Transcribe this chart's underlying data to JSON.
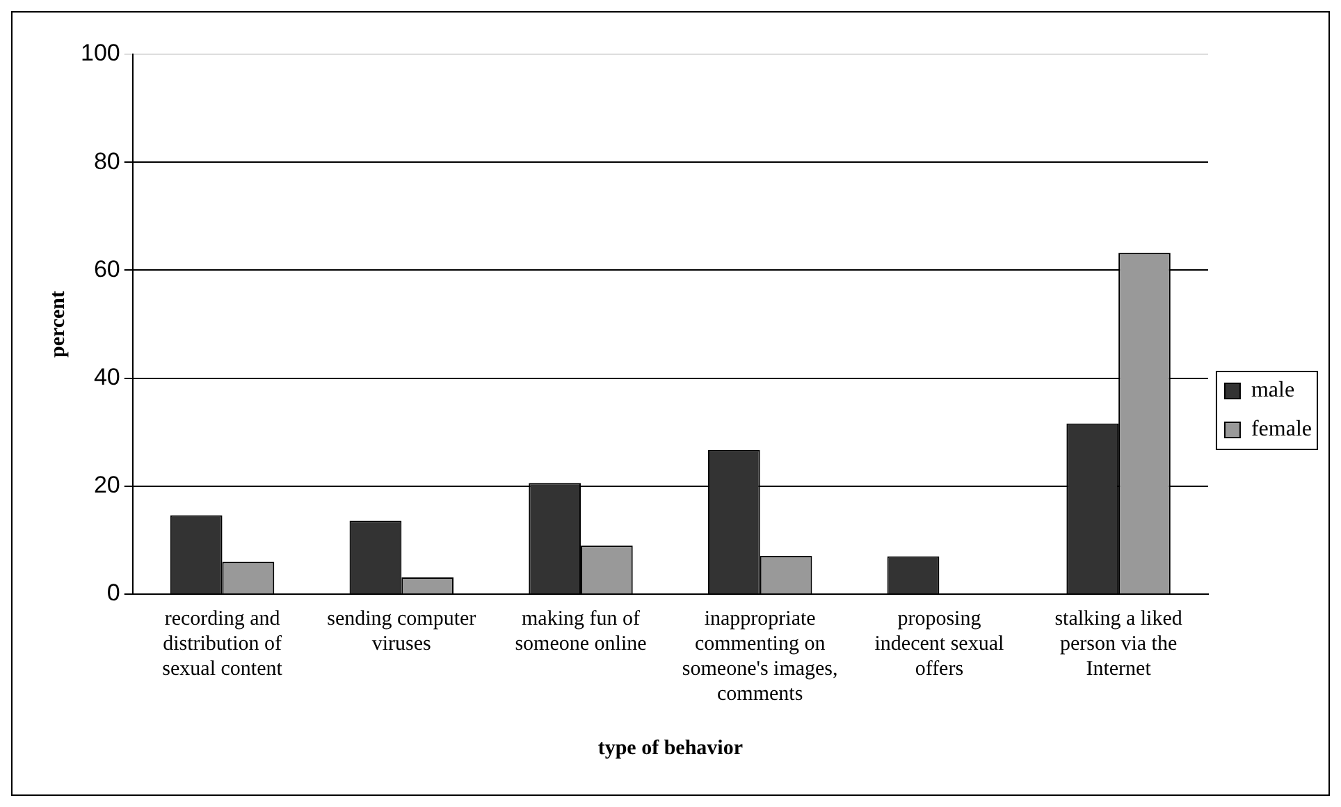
{
  "chart_data": {
    "type": "bar",
    "xlabel": "type of behavior",
    "ylabel": "percent",
    "categories": [
      "recording and distribution of sexual content",
      "sending computer viruses",
      "making fun of someone online",
      "inappropriate commenting on someone's images, comments",
      "proposing indecent sexual offers",
      "stalking a liked person via the Internet"
    ],
    "series": [
      {
        "name": "male",
        "color": "#333333",
        "values": [
          14.6,
          13.6,
          20.6,
          26.7,
          7,
          31.6
        ]
      },
      {
        "name": "female",
        "color": "#999999",
        "values": [
          6,
          3.1,
          9,
          7.1,
          0,
          63.2
        ]
      }
    ],
    "ylim": [
      0,
      100
    ],
    "yticks": [
      0,
      20,
      40,
      60,
      80,
      100
    ],
    "grid": "y",
    "legend": "right"
  }
}
